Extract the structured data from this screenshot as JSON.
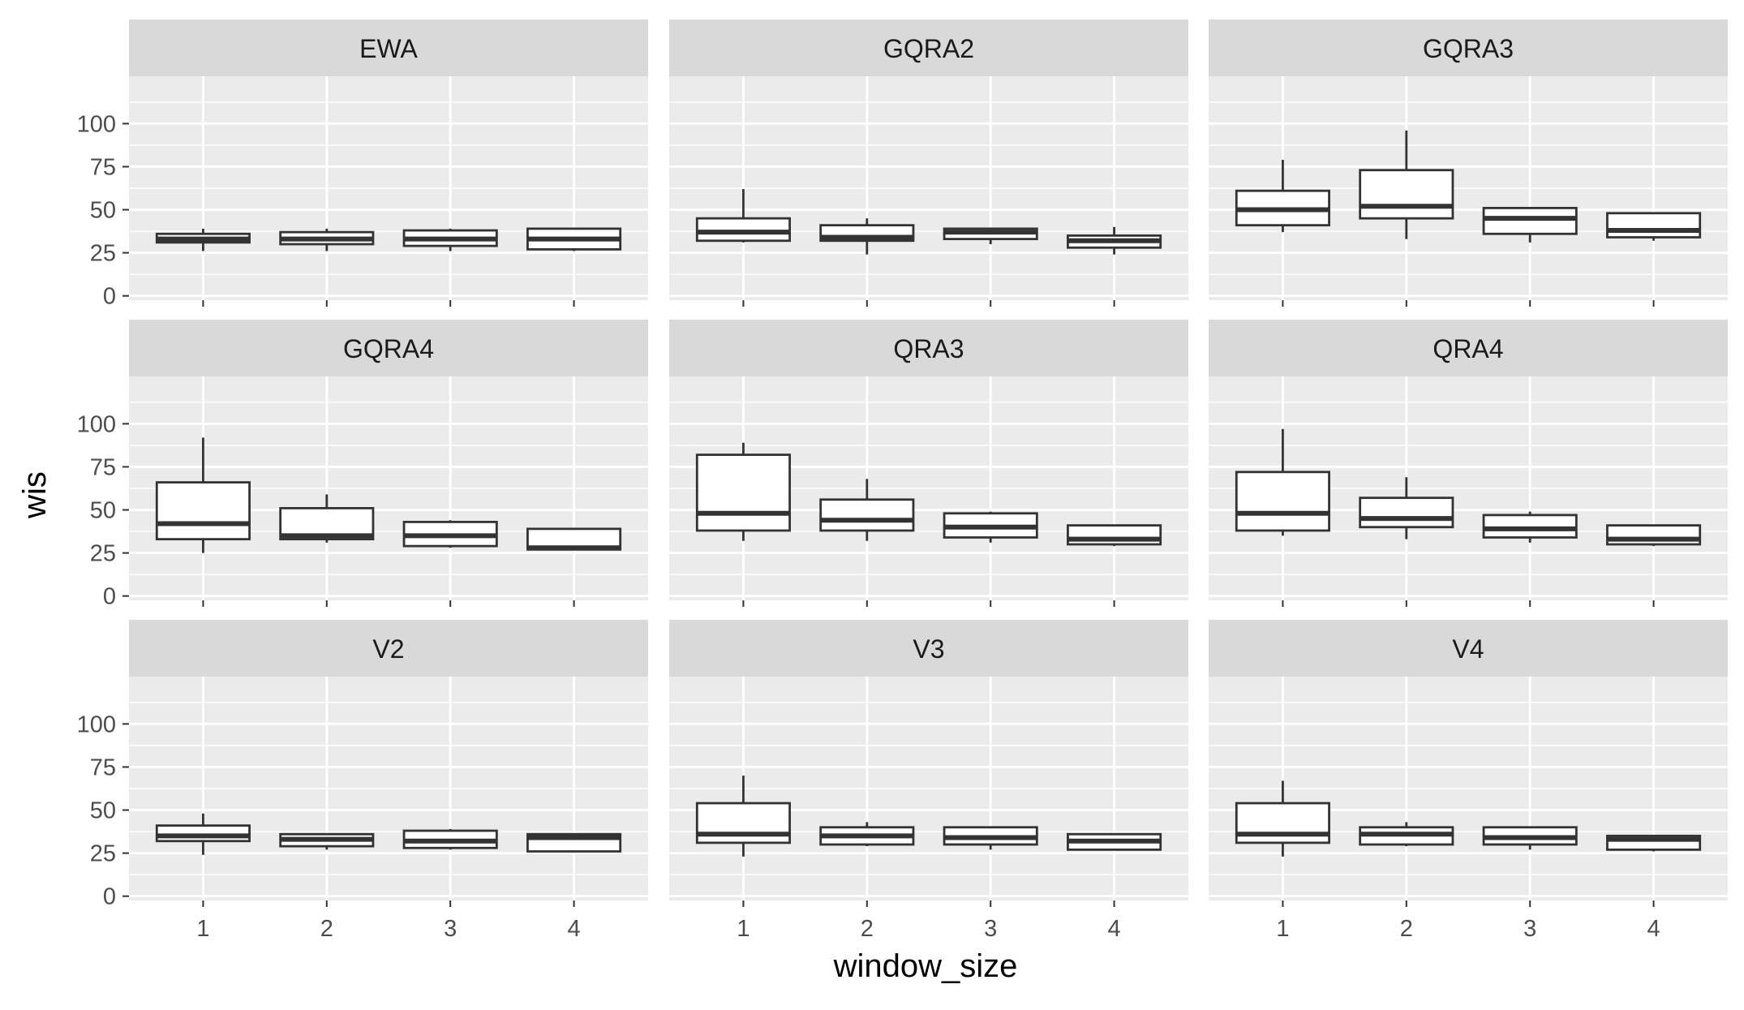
{
  "chart_data": {
    "type": "boxplot",
    "layout": "facet_wrap 3x3",
    "xlabel": "window_size",
    "ylabel": "wis",
    "ylim": [
      0,
      100
    ],
    "y_ticks": [
      0,
      25,
      50,
      75,
      100
    ],
    "x_categories": [
      "1",
      "2",
      "3",
      "4"
    ],
    "grid": true,
    "colors": {
      "panel_bg": "#ebebeb",
      "strip_bg": "#d9d9d9",
      "grid": "#ffffff",
      "box_fill": "#ffffff",
      "box_line": "#333333",
      "axis_text": "#4d4d4d",
      "strip_text": "#1a1a1a",
      "title_text": "#000000"
    },
    "panels": [
      {
        "name": "EWA",
        "boxes": [
          {
            "x": "1",
            "min": 26,
            "q1": 31,
            "median": 33,
            "q3": 36,
            "max": 39
          },
          {
            "x": "2",
            "min": 26,
            "q1": 30,
            "median": 33,
            "q3": 37,
            "max": 39
          },
          {
            "x": "3",
            "min": 26,
            "q1": 29,
            "median": 33,
            "q3": 38,
            "max": 39
          },
          {
            "x": "4",
            "min": 26,
            "q1": 27,
            "median": 33,
            "q3": 39,
            "max": 39
          }
        ]
      },
      {
        "name": "GQRA2",
        "boxes": [
          {
            "x": "1",
            "min": 31,
            "q1": 32,
            "median": 37,
            "q3": 45,
            "max": 62
          },
          {
            "x": "2",
            "min": 24,
            "q1": 32,
            "median": 34,
            "q3": 41,
            "max": 45
          },
          {
            "x": "3",
            "min": 30,
            "q1": 33,
            "median": 37,
            "q3": 39,
            "max": 39
          },
          {
            "x": "4",
            "min": 24,
            "q1": 28,
            "median": 32,
            "q3": 35,
            "max": 40
          }
        ]
      },
      {
        "name": "GQRA3",
        "boxes": [
          {
            "x": "1",
            "min": 37,
            "q1": 41,
            "median": 50,
            "q3": 61,
            "max": 79
          },
          {
            "x": "2",
            "min": 33,
            "q1": 45,
            "median": 52,
            "q3": 73,
            "max": 96
          },
          {
            "x": "3",
            "min": 31,
            "q1": 36,
            "median": 45,
            "q3": 51,
            "max": 51
          },
          {
            "x": "4",
            "min": 32,
            "q1": 34,
            "median": 38,
            "q3": 48,
            "max": 48
          }
        ]
      },
      {
        "name": "GQRA4",
        "boxes": [
          {
            "x": "1",
            "min": 25,
            "q1": 33,
            "median": 42,
            "q3": 66,
            "max": 92
          },
          {
            "x": "2",
            "min": 31,
            "q1": 33,
            "median": 35,
            "q3": 51,
            "max": 59
          },
          {
            "x": "3",
            "min": 28,
            "q1": 29,
            "median": 35,
            "q3": 43,
            "max": 44
          },
          {
            "x": "4",
            "min": 27,
            "q1": 27,
            "median": 28,
            "q3": 39,
            "max": 39
          }
        ]
      },
      {
        "name": "QRA3",
        "boxes": [
          {
            "x": "1",
            "min": 32,
            "q1": 38,
            "median": 48,
            "q3": 82,
            "max": 89
          },
          {
            "x": "2",
            "min": 32,
            "q1": 38,
            "median": 44,
            "q3": 56,
            "max": 68
          },
          {
            "x": "3",
            "min": 31,
            "q1": 34,
            "median": 40,
            "q3": 48,
            "max": 49
          },
          {
            "x": "4",
            "min": 29,
            "q1": 30,
            "median": 33,
            "q3": 41,
            "max": 41
          }
        ]
      },
      {
        "name": "QRA4",
        "boxes": [
          {
            "x": "1",
            "min": 35,
            "q1": 38,
            "median": 48,
            "q3": 72,
            "max": 97
          },
          {
            "x": "2",
            "min": 33,
            "q1": 40,
            "median": 45,
            "q3": 57,
            "max": 69
          },
          {
            "x": "3",
            "min": 31,
            "q1": 34,
            "median": 39,
            "q3": 47,
            "max": 49
          },
          {
            "x": "4",
            "min": 29,
            "q1": 30,
            "median": 33,
            "q3": 41,
            "max": 41
          }
        ]
      },
      {
        "name": "V2",
        "boxes": [
          {
            "x": "1",
            "min": 24,
            "q1": 32,
            "median": 35,
            "q3": 41,
            "max": 48
          },
          {
            "x": "2",
            "min": 27,
            "q1": 29,
            "median": 33,
            "q3": 36,
            "max": 36
          },
          {
            "x": "3",
            "min": 27,
            "q1": 28,
            "median": 32,
            "q3": 38,
            "max": 39
          },
          {
            "x": "4",
            "min": 26,
            "q1": 26,
            "median": 34,
            "q3": 36,
            "max": 36
          }
        ]
      },
      {
        "name": "V3",
        "boxes": [
          {
            "x": "1",
            "min": 23,
            "q1": 31,
            "median": 36,
            "q3": 54,
            "max": 70
          },
          {
            "x": "2",
            "min": 29,
            "q1": 30,
            "median": 35,
            "q3": 40,
            "max": 43
          },
          {
            "x": "3",
            "min": 27,
            "q1": 30,
            "median": 34,
            "q3": 40,
            "max": 40
          },
          {
            "x": "4",
            "min": 27,
            "q1": 27,
            "median": 32,
            "q3": 36,
            "max": 36
          }
        ]
      },
      {
        "name": "V4",
        "boxes": [
          {
            "x": "1",
            "min": 23,
            "q1": 31,
            "median": 36,
            "q3": 54,
            "max": 67
          },
          {
            "x": "2",
            "min": 29,
            "q1": 30,
            "median": 36,
            "q3": 40,
            "max": 43
          },
          {
            "x": "3",
            "min": 27,
            "q1": 30,
            "median": 34,
            "q3": 40,
            "max": 40
          },
          {
            "x": "4",
            "min": 26,
            "q1": 27,
            "median": 33,
            "q3": 35,
            "max": 35
          }
        ]
      }
    ]
  }
}
